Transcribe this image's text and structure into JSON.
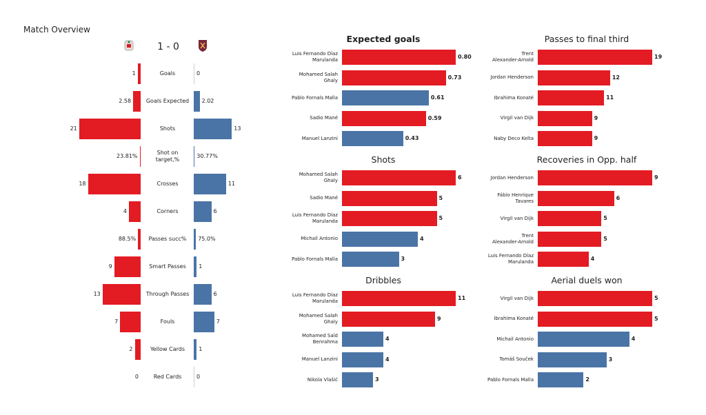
{
  "title": "Match Overview",
  "score": "1 - 0",
  "colors": {
    "home": "#e31b23",
    "away": "#4a74a6"
  },
  "overview": [
    {
      "label": "Goals",
      "home": "1",
      "away": "0",
      "home_v": 1,
      "away_v": 0
    },
    {
      "label": "Goals Expected",
      "home": "2.58",
      "away": "2.02",
      "home_v": 2.58,
      "away_v": 2.02
    },
    {
      "label": "Shots",
      "home": "21",
      "away": "13",
      "home_v": 21,
      "away_v": 13
    },
    {
      "label": "Shot on\ntarget,%",
      "home": "23.81%",
      "away": "30.77%",
      "home_v": 0.2381,
      "away_v": 0.3077
    },
    {
      "label": "Crosses",
      "home": "18",
      "away": "11",
      "home_v": 18,
      "away_v": 11
    },
    {
      "label": "Corners",
      "home": "4",
      "away": "6",
      "home_v": 4,
      "away_v": 6
    },
    {
      "label": "Passes succ%",
      "home": "88.5%",
      "away": "75.0%",
      "home_v": 0.885,
      "away_v": 0.75
    },
    {
      "label": "Smart Passes",
      "home": "9",
      "away": "1",
      "home_v": 9,
      "away_v": 1
    },
    {
      "label": "Through Passes",
      "home": "13",
      "away": "6",
      "home_v": 13,
      "away_v": 6
    },
    {
      "label": "Fouls",
      "home": "7",
      "away": "7",
      "home_v": 7,
      "away_v": 7
    },
    {
      "label": "Yellow Cards",
      "home": "2",
      "away": "1",
      "home_v": 2,
      "away_v": 1
    },
    {
      "label": "Red Cards",
      "home": "0",
      "away": "0",
      "home_v": 0,
      "away_v": 0
    }
  ],
  "charts": [
    {
      "title": "Expected goals",
      "bold": true,
      "max": 0.8,
      "players": [
        {
          "name": "Luis Fernando Díaz\nMarulanda",
          "value": "0.80",
          "v": 0.8,
          "team": "home"
        },
        {
          "name": "Mohamed  Salah\nGhaly",
          "value": "0.73",
          "v": 0.73,
          "team": "home"
        },
        {
          "name": "Pablo Fornals Malla",
          "value": "0.61",
          "v": 0.61,
          "team": "away"
        },
        {
          "name": "Sadio Mané",
          "value": "0.59",
          "v": 0.59,
          "team": "home"
        },
        {
          "name": "Manuel Lanzini",
          "value": "0.43",
          "v": 0.43,
          "team": "away"
        }
      ]
    },
    {
      "title": "Passes to final third",
      "bold": false,
      "max": 19,
      "players": [
        {
          "name": "Trent\nAlexander-Arnold",
          "value": "19",
          "v": 19,
          "team": "home"
        },
        {
          "name": "Jordan Henderson",
          "value": "12",
          "v": 12,
          "team": "home"
        },
        {
          "name": "Ibrahima Konaté",
          "value": "11",
          "v": 11,
          "team": "home"
        },
        {
          "name": "Virgil van Dijk",
          "value": "9",
          "v": 9,
          "team": "home"
        },
        {
          "name": "Naby Deco Keïta",
          "value": "9",
          "v": 9,
          "team": "home"
        }
      ]
    },
    {
      "title": "Shots",
      "bold": false,
      "max": 6,
      "players": [
        {
          "name": "Mohamed  Salah\nGhaly",
          "value": "6",
          "v": 6,
          "team": "home"
        },
        {
          "name": "Sadio Mané",
          "value": "5",
          "v": 5,
          "team": "home"
        },
        {
          "name": "Luis Fernando Díaz\nMarulanda",
          "value": "5",
          "v": 5,
          "team": "home"
        },
        {
          "name": "Michail Antonio",
          "value": "4",
          "v": 4,
          "team": "away"
        },
        {
          "name": "Pablo Fornals Malla",
          "value": "3",
          "v": 3,
          "team": "away"
        }
      ]
    },
    {
      "title": "Recoveries in Opp. half",
      "bold": false,
      "max": 9,
      "players": [
        {
          "name": "Jordan Henderson",
          "value": "9",
          "v": 9,
          "team": "home"
        },
        {
          "name": "Fábio Henrique\nTavares",
          "value": "6",
          "v": 6,
          "team": "home"
        },
        {
          "name": "Virgil van Dijk",
          "value": "5",
          "v": 5,
          "team": "home"
        },
        {
          "name": "Trent\nAlexander-Arnold",
          "value": "5",
          "v": 5,
          "team": "home"
        },
        {
          "name": "Luis Fernando Díaz\nMarulanda",
          "value": "4",
          "v": 4,
          "team": "home"
        }
      ]
    },
    {
      "title": "Dribbles",
      "bold": false,
      "max": 11,
      "players": [
        {
          "name": "Luis Fernando Díaz\nMarulanda",
          "value": "11",
          "v": 11,
          "team": "home"
        },
        {
          "name": "Mohamed  Salah\nGhaly",
          "value": "9",
          "v": 9,
          "team": "home"
        },
        {
          "name": "Mohamed Saïd\nBenrahma",
          "value": "4",
          "v": 4,
          "team": "away"
        },
        {
          "name": "Manuel Lanzini",
          "value": "4",
          "v": 4,
          "team": "away"
        },
        {
          "name": "Nikola Vlašić",
          "value": "3",
          "v": 3,
          "team": "away"
        }
      ]
    },
    {
      "title": "Aerial duels won",
      "bold": false,
      "max": 5,
      "players": [
        {
          "name": "Virgil van Dijk",
          "value": "5",
          "v": 5,
          "team": "home"
        },
        {
          "name": "Ibrahima Konaté",
          "value": "5",
          "v": 5,
          "team": "home"
        },
        {
          "name": "Michail Antonio",
          "value": "4",
          "v": 4,
          "team": "away"
        },
        {
          "name": "Tomáš Souček",
          "value": "3",
          "v": 3,
          "team": "away"
        },
        {
          "name": "Pablo Fornals Malla",
          "value": "2",
          "v": 2,
          "team": "away"
        }
      ]
    }
  ]
}
